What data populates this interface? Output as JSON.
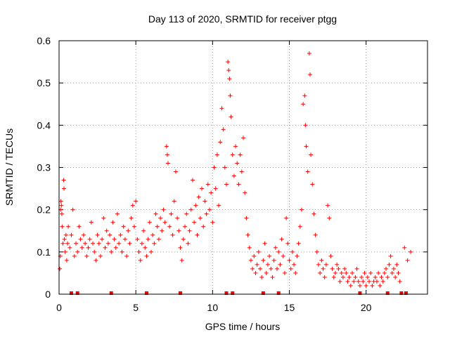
{
  "chart_data": {
    "type": "scatter",
    "title": "Day 113 of 2020, SRMTID for receiver ptgg",
    "xlabel": "GPS time / hours",
    "ylabel": "SRMTID / TECUs",
    "xlim": [
      0,
      24
    ],
    "ylim": [
      0,
      0.6
    ],
    "xticks": [
      0,
      5,
      10,
      15,
      20
    ],
    "yticks": [
      0,
      0.1,
      0.2,
      0.3,
      0.4,
      0.5,
      0.6
    ],
    "xtick_labels": [
      "0",
      "5",
      "10",
      "15",
      "20"
    ],
    "ytick_labels": [
      "0",
      "0.1",
      "0.2",
      "0.3",
      "0.4",
      "0.5",
      "0.6"
    ],
    "grid": true,
    "marker": "+",
    "color": "#ff0000",
    "series": [
      {
        "name": "SRMTID",
        "points": [
          [
            0.05,
            0.06
          ],
          [
            0.08,
            0.09
          ],
          [
            0.1,
            0.2
          ],
          [
            0.12,
            0.22
          ],
          [
            0.15,
            0.21
          ],
          [
            0.18,
            0.19
          ],
          [
            0.2,
            0.16
          ],
          [
            0.25,
            0.12
          ],
          [
            0.3,
            0.27
          ],
          [
            0.32,
            0.25
          ],
          [
            0.35,
            0.13
          ],
          [
            0.4,
            0.1
          ],
          [
            0.45,
            0.14
          ],
          [
            0.5,
            0.08
          ],
          [
            0.55,
            0.12
          ],
          [
            0.6,
            0.16
          ],
          [
            0.7,
            0.11
          ],
          [
            0.8,
            0.14
          ],
          [
            0.9,
            0.2
          ],
          [
            1.0,
            0.09
          ],
          [
            1.1,
            0.12
          ],
          [
            1.2,
            0.1
          ],
          [
            1.3,
            0.16
          ],
          [
            1.4,
            0.13
          ],
          [
            1.5,
            0.11
          ],
          [
            1.6,
            0.14
          ],
          [
            1.7,
            0.12
          ],
          [
            1.8,
            0.09
          ],
          [
            1.9,
            0.11
          ],
          [
            2.0,
            0.13
          ],
          [
            2.1,
            0.17
          ],
          [
            2.2,
            0.12
          ],
          [
            2.3,
            0.1
          ],
          [
            2.4,
            0.08
          ],
          [
            2.5,
            0.14
          ],
          [
            2.6,
            0.12
          ],
          [
            2.7,
            0.09
          ],
          [
            2.8,
            0.13
          ],
          [
            2.9,
            0.18
          ],
          [
            3.0,
            0.11
          ],
          [
            3.1,
            0.15
          ],
          [
            3.2,
            0.12
          ],
          [
            3.3,
            0.14
          ],
          [
            3.4,
            0.1
          ],
          [
            3.5,
            0.17
          ],
          [
            3.6,
            0.13
          ],
          [
            3.7,
            0.11
          ],
          [
            3.8,
            0.19
          ],
          [
            3.9,
            0.12
          ],
          [
            4.0,
            0.14
          ],
          [
            4.1,
            0.1
          ],
          [
            4.2,
            0.16
          ],
          [
            4.3,
            0.13
          ],
          [
            4.4,
            0.09
          ],
          [
            4.5,
            0.15
          ],
          [
            4.6,
            0.12
          ],
          [
            4.7,
            0.18
          ],
          [
            4.8,
            0.21
          ],
          [
            4.9,
            0.16
          ],
          [
            5.0,
            0.22
          ],
          [
            5.1,
            0.13
          ],
          [
            5.2,
            0.1
          ],
          [
            5.3,
            0.08
          ],
          [
            5.4,
            0.12
          ],
          [
            5.5,
            0.15
          ],
          [
            5.6,
            0.11
          ],
          [
            5.7,
            0.09
          ],
          [
            5.8,
            0.13
          ],
          [
            5.9,
            0.17
          ],
          [
            6.0,
            0.1
          ],
          [
            6.1,
            0.14
          ],
          [
            6.2,
            0.12
          ],
          [
            6.3,
            0.19
          ],
          [
            6.4,
            0.16
          ],
          [
            6.5,
            0.13
          ],
          [
            6.6,
            0.18
          ],
          [
            6.7,
            0.15
          ],
          [
            6.8,
            0.2
          ],
          [
            6.9,
            0.17
          ],
          [
            7.0,
            0.35
          ],
          [
            7.05,
            0.33
          ],
          [
            7.1,
            0.31
          ],
          [
            7.2,
            0.16
          ],
          [
            7.3,
            0.19
          ],
          [
            7.4,
            0.14
          ],
          [
            7.5,
            0.22
          ],
          [
            7.6,
            0.29
          ],
          [
            7.7,
            0.18
          ],
          [
            7.8,
            0.15
          ],
          [
            7.9,
            0.11
          ],
          [
            8.0,
            0.08
          ],
          [
            8.1,
            0.13
          ],
          [
            8.2,
            0.16
          ],
          [
            8.3,
            0.19
          ],
          [
            8.4,
            0.12
          ],
          [
            8.5,
            0.15
          ],
          [
            8.6,
            0.2
          ],
          [
            8.7,
            0.27
          ],
          [
            8.8,
            0.17
          ],
          [
            8.9,
            0.21
          ],
          [
            9.0,
            0.14
          ],
          [
            9.1,
            0.23
          ],
          [
            9.2,
            0.18
          ],
          [
            9.3,
            0.25
          ],
          [
            9.4,
            0.16
          ],
          [
            9.5,
            0.22
          ],
          [
            9.6,
            0.19
          ],
          [
            9.7,
            0.26
          ],
          [
            9.8,
            0.2
          ],
          [
            9.9,
            0.24
          ],
          [
            10.0,
            0.17
          ],
          [
            10.1,
            0.3
          ],
          [
            10.2,
            0.25
          ],
          [
            10.3,
            0.33
          ],
          [
            10.4,
            0.21
          ],
          [
            10.5,
            0.36
          ],
          [
            10.6,
            0.44
          ],
          [
            10.7,
            0.39
          ],
          [
            10.8,
            0.3
          ],
          [
            10.9,
            0.26
          ],
          [
            11.0,
            0.55
          ],
          [
            11.05,
            0.53
          ],
          [
            11.1,
            0.51
          ],
          [
            11.15,
            0.47
          ],
          [
            11.2,
            0.42
          ],
          [
            11.3,
            0.33
          ],
          [
            11.4,
            0.28
          ],
          [
            11.5,
            0.35
          ],
          [
            11.6,
            0.31
          ],
          [
            11.7,
            0.26
          ],
          [
            11.8,
            0.33
          ],
          [
            11.9,
            0.29
          ],
          [
            12.0,
            0.37
          ],
          [
            12.1,
            0.24
          ],
          [
            12.2,
            0.18
          ],
          [
            12.3,
            0.14
          ],
          [
            12.4,
            0.11
          ],
          [
            12.5,
            0.08
          ],
          [
            12.6,
            0.06
          ],
          [
            12.7,
            0.09
          ],
          [
            12.8,
            0.05
          ],
          [
            12.9,
            0.07
          ],
          [
            13.0,
            0.1
          ],
          [
            13.1,
            0.06
          ],
          [
            13.2,
            0.04
          ],
          [
            13.3,
            0.08
          ],
          [
            13.4,
            0.12
          ],
          [
            13.5,
            0.05
          ],
          [
            13.6,
            0.07
          ],
          [
            13.7,
            0.09
          ],
          [
            13.8,
            0.06
          ],
          [
            13.9,
            0.04
          ],
          [
            14.0,
            0.08
          ],
          [
            14.1,
            0.11
          ],
          [
            14.2,
            0.06
          ],
          [
            14.3,
            0.1
          ],
          [
            14.4,
            0.07
          ],
          [
            14.5,
            0.13
          ],
          [
            14.6,
            0.09
          ],
          [
            14.7,
            0.05
          ],
          [
            14.8,
            0.18
          ],
          [
            14.9,
            0.12
          ],
          [
            15.0,
            0.08
          ],
          [
            15.1,
            0.06
          ],
          [
            15.2,
            0.1
          ],
          [
            15.3,
            0.07
          ],
          [
            15.4,
            0.05
          ],
          [
            15.5,
            0.09
          ],
          [
            15.6,
            0.12
          ],
          [
            15.7,
            0.16
          ],
          [
            15.8,
            0.2
          ],
          [
            15.9,
            0.45
          ],
          [
            16.0,
            0.47
          ],
          [
            16.05,
            0.4
          ],
          [
            16.1,
            0.35
          ],
          [
            16.2,
            0.29
          ],
          [
            16.3,
            0.57
          ],
          [
            16.35,
            0.52
          ],
          [
            16.4,
            0.33
          ],
          [
            16.5,
            0.26
          ],
          [
            16.6,
            0.19
          ],
          [
            16.7,
            0.14
          ],
          [
            16.8,
            0.1
          ],
          [
            16.9,
            0.07
          ],
          [
            17.0,
            0.05
          ],
          [
            17.1,
            0.08
          ],
          [
            17.2,
            0.06
          ],
          [
            17.3,
            0.04
          ],
          [
            17.4,
            0.07
          ],
          [
            17.5,
            0.21
          ],
          [
            17.6,
            0.18
          ],
          [
            17.7,
            0.09
          ],
          [
            17.8,
            0.06
          ],
          [
            17.9,
            0.04
          ],
          [
            18.0,
            0.05
          ],
          [
            18.1,
            0.07
          ],
          [
            18.2,
            0.06
          ],
          [
            18.3,
            0.03
          ],
          [
            18.4,
            0.05
          ],
          [
            18.5,
            0.04
          ],
          [
            18.6,
            0.06
          ],
          [
            18.7,
            0.05
          ],
          [
            18.8,
            0.03
          ],
          [
            18.9,
            0.04
          ],
          [
            19.0,
            0.02
          ],
          [
            19.1,
            0.05
          ],
          [
            19.2,
            0.03
          ],
          [
            19.3,
            0.04
          ],
          [
            19.4,
            0.06
          ],
          [
            19.5,
            0.03
          ],
          [
            19.6,
            0.02
          ],
          [
            19.7,
            0.04
          ],
          [
            19.8,
            0.03
          ],
          [
            19.9,
            0.05
          ],
          [
            20.0,
            0.02
          ],
          [
            20.1,
            0.04
          ],
          [
            20.2,
            0.03
          ],
          [
            20.3,
            0.05
          ],
          [
            20.4,
            0.02
          ],
          [
            20.5,
            0.03
          ],
          [
            20.6,
            0.04
          ],
          [
            20.7,
            0.03
          ],
          [
            20.8,
            0.05
          ],
          [
            20.9,
            0.02
          ],
          [
            21.0,
            0.04
          ],
          [
            21.1,
            0.03
          ],
          [
            21.2,
            0.05
          ],
          [
            21.3,
            0.06
          ],
          [
            21.4,
            0.04
          ],
          [
            21.5,
            0.07
          ],
          [
            21.6,
            0.09
          ],
          [
            21.7,
            0.05
          ],
          [
            21.8,
            0.06
          ],
          [
            21.9,
            0.04
          ],
          [
            22.0,
            0.07
          ],
          [
            22.1,
            0.05
          ],
          [
            22.2,
            0.03
          ],
          [
            22.5,
            0.11
          ],
          [
            22.7,
            0.08
          ],
          [
            22.9,
            0.1
          ]
        ]
      }
    ],
    "gap_markers_x": [
      0.8,
      1.2,
      3.4,
      5.7,
      7.9,
      10.9,
      11.3,
      13.3,
      14.3,
      19.6,
      21.4,
      22.3,
      22.6
    ]
  }
}
